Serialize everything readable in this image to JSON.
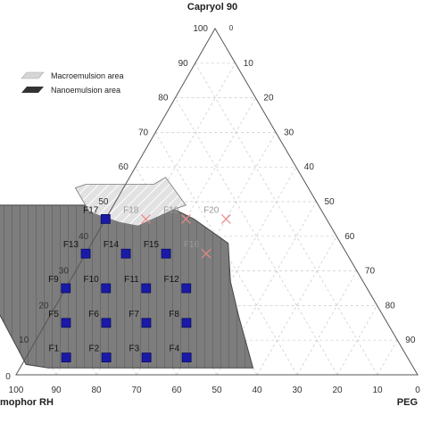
{
  "chart_data": {
    "type": "scatter",
    "title": "",
    "apex_label": "Capryol 90",
    "left_label": "mophor RH",
    "right_label": "PEG",
    "left_ticks": [
      "10",
      "20",
      "30",
      "40",
      "50",
      "60",
      "70",
      "80",
      "90",
      "100"
    ],
    "right_ticks": [
      "10",
      "20",
      "30",
      "40",
      "50",
      "60",
      "70",
      "80",
      "90"
    ],
    "bottom_ticks": [
      "90",
      "80",
      "70",
      "60",
      "50",
      "40",
      "30",
      "20",
      "10"
    ],
    "corner_labels": {
      "bottom_left": "100",
      "bottom_right": "0",
      "left_zero": "0",
      "apex_zero": "0"
    },
    "legend": [
      {
        "label": "Macroemulsion area",
        "color": "#d6d6d6"
      },
      {
        "label": "Nanoemulsion area",
        "color": "#333333"
      }
    ],
    "colors": {
      "nanoemulsion_fill": "#7f7f7f",
      "macroemulsion_fill": "#e2e2e2",
      "point_fill": "#1a1aa8",
      "cross": "#e88a8a"
    },
    "nanoemulsion_region": [
      [
        91,
        2
      ],
      [
        40,
        2
      ],
      [
        36,
        17
      ],
      [
        33,
        27
      ],
      [
        28,
        38
      ],
      [
        33,
        45
      ],
      [
        38,
        49
      ],
      [
        90,
        49
      ],
      [
        94,
        45
      ],
      [
        96,
        3
      ]
    ],
    "macroemulsion_region": [
      [
        48,
        43
      ],
      [
        36,
        48
      ],
      [
        33,
        49
      ],
      [
        34,
        57
      ],
      [
        38,
        55
      ],
      [
        55,
        55
      ],
      [
        58,
        54
      ],
      [
        58,
        47
      ],
      [
        52,
        44
      ]
    ],
    "points": [
      {
        "label": "F1",
        "Cremophor RH": 85,
        "PEG": 10,
        "Capryol 90": 5,
        "marker": "square"
      },
      {
        "label": "F2",
        "Cremophor RH": 75,
        "PEG": 20,
        "Capryol 90": 5,
        "marker": "square"
      },
      {
        "label": "F3",
        "Cremophor RH": 65,
        "PEG": 30,
        "Capryol 90": 5,
        "marker": "square"
      },
      {
        "label": "F4",
        "Cremophor RH": 55,
        "PEG": 40,
        "Capryol 90": 5,
        "marker": "square"
      },
      {
        "label": "F5",
        "Cremophor RH": 80,
        "PEG": 5,
        "Capryol 90": 15,
        "marker": "square"
      },
      {
        "label": "F6",
        "Cremophor RH": 70,
        "PEG": 15,
        "Capryol 90": 15,
        "marker": "square"
      },
      {
        "label": "F7",
        "Cremophor RH": 60,
        "PEG": 25,
        "Capryol 90": 15,
        "marker": "square"
      },
      {
        "label": "F8",
        "Cremophor RH": 50,
        "PEG": 35,
        "Capryol 90": 15,
        "marker": "square"
      },
      {
        "label": "F9",
        "Cremophor RH": 75,
        "PEG": 0,
        "Capryol 90": 25,
        "marker": "square"
      },
      {
        "label": "F10",
        "Cremophor RH": 65,
        "PEG": 10,
        "Capryol 90": 25,
        "marker": "square"
      },
      {
        "label": "F11",
        "Cremophor RH": 55,
        "PEG": 20,
        "Capryol 90": 25,
        "marker": "square"
      },
      {
        "label": "F12",
        "Cremophor RH": 45,
        "PEG": 30,
        "Capryol 90": 25,
        "marker": "square"
      },
      {
        "label": "F13",
        "Cremophor RH": 65,
        "PEG": 0,
        "Capryol 90": 35,
        "marker": "square"
      },
      {
        "label": "F14",
        "Cremophor RH": 55,
        "PEG": 10,
        "Capryol 90": 35,
        "marker": "square"
      },
      {
        "label": "F15",
        "Cremophor RH": 45,
        "PEG": 20,
        "Capryol 90": 35,
        "marker": "square"
      },
      {
        "label": "F16",
        "Cremophor RH": 35,
        "PEG": 30,
        "Capryol 90": 35,
        "marker": "cross"
      },
      {
        "label": "F17",
        "Cremophor RH": 55,
        "PEG": 0,
        "Capryol 90": 45,
        "marker": "square"
      },
      {
        "label": "F18",
        "Cremophor RH": 45,
        "PEG": 10,
        "Capryol 90": 45,
        "marker": "cross"
      },
      {
        "label": "F19",
        "Cremophor RH": 35,
        "PEG": 20,
        "Capryol 90": 45,
        "marker": "cross"
      },
      {
        "label": "F20",
        "Cremophor RH": 25,
        "PEG": 30,
        "Capryol 90": 45,
        "marker": "cross"
      }
    ]
  }
}
